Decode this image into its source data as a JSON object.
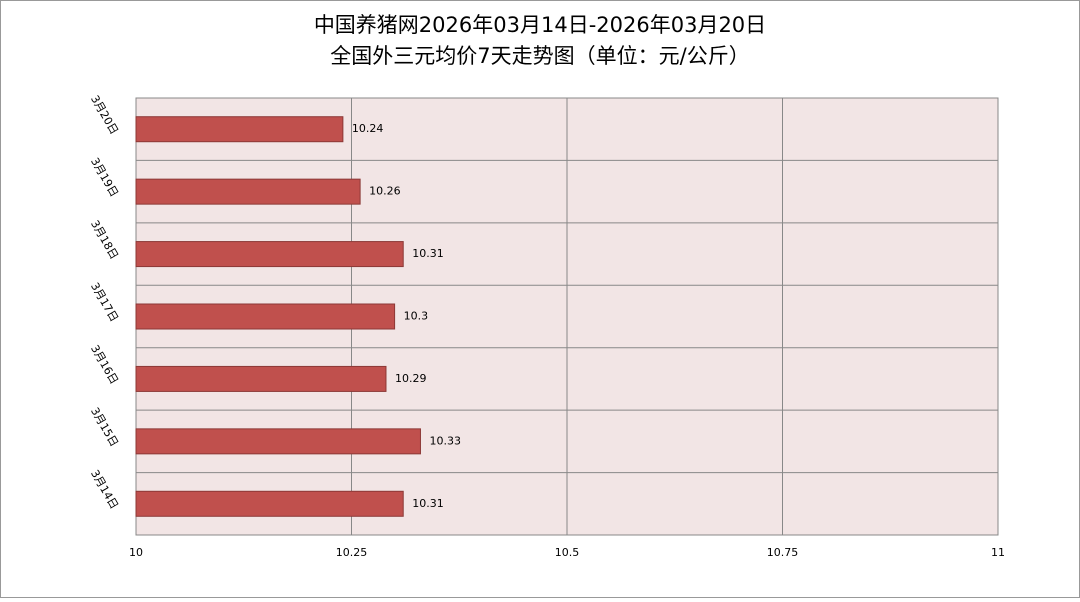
{
  "chart_data": {
    "type": "hbar",
    "title": "中国养猪网2026年03月14日-2026年03月20日",
    "subtitle": "全国外三元均价7天走势图（单位：元/公斤）",
    "categories": [
      "3月20日",
      "3月19日",
      "3月18日",
      "3月17日",
      "3月16日",
      "3月15日",
      "3月14日"
    ],
    "values": [
      10.24,
      10.26,
      10.31,
      10.3,
      10.29,
      10.33,
      10.31
    ],
    "color": "#c0504d",
    "xlim": [
      10,
      11
    ],
    "xticks": [
      10,
      10.25,
      10.5,
      10.75,
      11
    ],
    "grid": true
  }
}
